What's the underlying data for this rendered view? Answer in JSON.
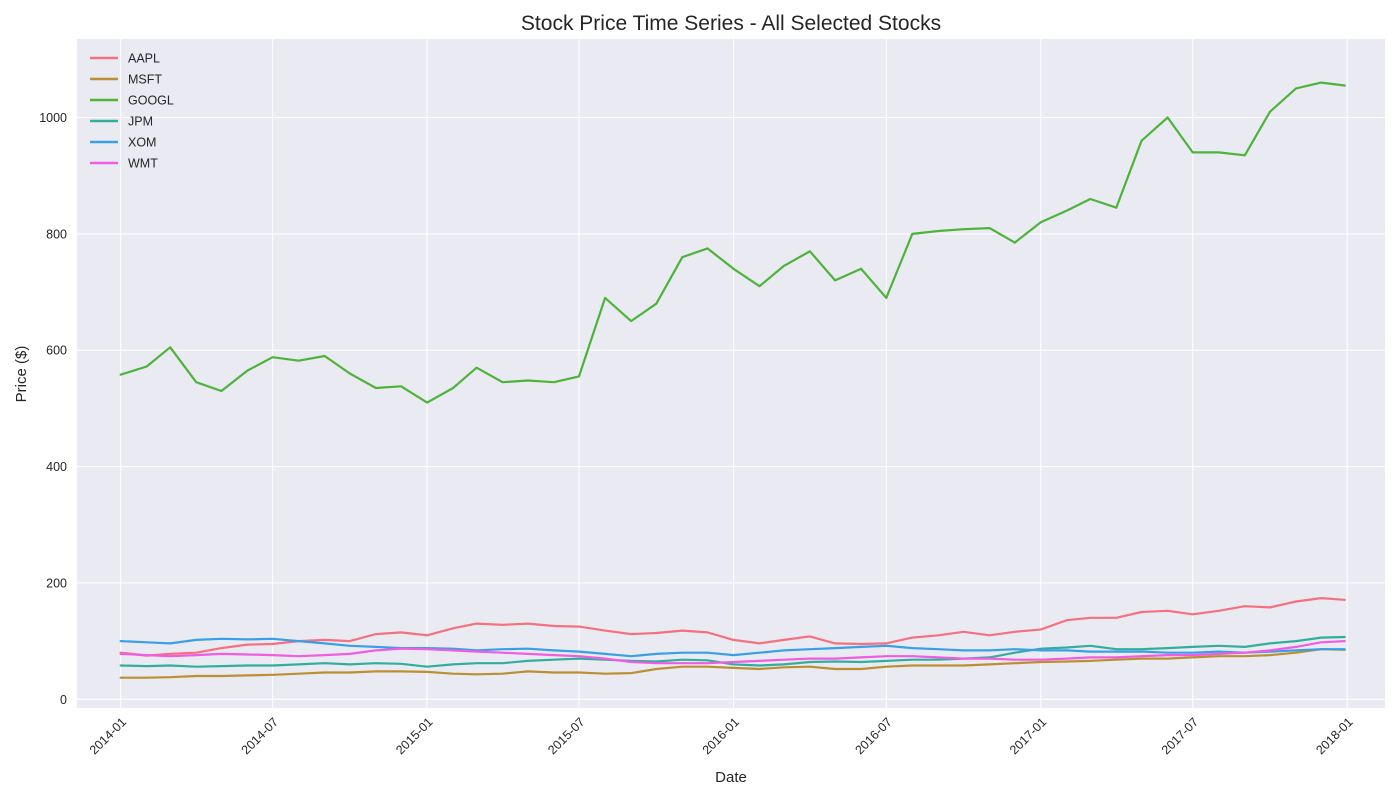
{
  "chart_data": {
    "type": "line",
    "title": "Stock Price Time Series - All Selected Stocks",
    "xlabel": "Date",
    "ylabel": "Price ($)",
    "xlim": [
      "2013-11-10",
      "2018-02-15"
    ],
    "ylim": [
      -15,
      1135
    ],
    "x_ticks": [
      "2014-01",
      "2014-07",
      "2015-01",
      "2015-07",
      "2016-01",
      "2016-07",
      "2017-01",
      "2017-07",
      "2018-01"
    ],
    "y_ticks": [
      0,
      200,
      400,
      600,
      800,
      1000
    ],
    "grid": true,
    "legend_position": "top-left",
    "x": [
      "2014-01-01",
      "2014-02-01",
      "2014-03-01",
      "2014-04-01",
      "2014-05-01",
      "2014-06-01",
      "2014-07-01",
      "2014-08-01",
      "2014-09-01",
      "2014-10-01",
      "2014-11-01",
      "2014-12-01",
      "2015-01-01",
      "2015-02-01",
      "2015-03-01",
      "2015-04-01",
      "2015-05-01",
      "2015-06-01",
      "2015-07-01",
      "2015-08-01",
      "2015-09-01",
      "2015-10-01",
      "2015-11-01",
      "2015-12-01",
      "2016-01-01",
      "2016-02-01",
      "2016-03-01",
      "2016-04-01",
      "2016-05-01",
      "2016-06-01",
      "2016-07-01",
      "2016-08-01",
      "2016-09-01",
      "2016-10-01",
      "2016-11-01",
      "2016-12-01",
      "2017-01-01",
      "2017-02-01",
      "2017-03-01",
      "2017-04-01",
      "2017-05-01",
      "2017-06-01",
      "2017-07-01",
      "2017-08-01",
      "2017-09-01",
      "2017-10-01",
      "2017-11-01",
      "2017-12-01",
      "2017-12-29"
    ],
    "series": [
      {
        "name": "AAPL",
        "color": "#f4717f",
        "values": [
          80,
          75,
          78,
          80,
          88,
          94,
          95,
          100,
          102,
          100,
          112,
          115,
          110,
          122,
          130,
          128,
          130,
          126,
          125,
          118,
          112,
          114,
          118,
          115,
          102,
          96,
          102,
          108,
          96,
          95,
          96,
          106,
          110,
          116,
          110,
          116,
          120,
          136,
          140,
          140,
          150,
          152,
          146,
          152,
          160,
          158,
          168,
          174,
          171
        ]
      },
      {
        "name": "MSFT",
        "color": "#bb9033",
        "values": [
          37,
          37,
          38,
          40,
          40,
          41,
          42,
          44,
          46,
          46,
          48,
          48,
          47,
          44,
          43,
          44,
          48,
          46,
          46,
          44,
          45,
          52,
          56,
          56,
          54,
          52,
          55,
          56,
          52,
          52,
          56,
          58,
          58,
          58,
          60,
          62,
          64,
          65,
          66,
          68,
          70,
          70,
          72,
          74,
          74,
          76,
          80,
          86,
          85
        ]
      },
      {
        "name": "GOOGL",
        "color": "#4eb33a",
        "values": [
          558,
          572,
          605,
          545,
          530,
          565,
          588,
          582,
          590,
          560,
          535,
          538,
          510,
          535,
          570,
          545,
          548,
          545,
          555,
          690,
          650,
          680,
          760,
          775,
          740,
          710,
          745,
          770,
          720,
          740,
          690,
          800,
          805,
          808,
          810,
          785,
          820,
          840,
          860,
          845,
          960,
          1000,
          940,
          940,
          935,
          1010,
          1050,
          1060,
          1055
        ]
      },
      {
        "name": "JPM",
        "color": "#32ae9c",
        "values": [
          58,
          57,
          58,
          56,
          57,
          58,
          58,
          60,
          62,
          60,
          62,
          61,
          56,
          60,
          62,
          62,
          66,
          68,
          70,
          68,
          66,
          65,
          68,
          67,
          60,
          58,
          60,
          64,
          65,
          64,
          66,
          68,
          68,
          70,
          72,
          80,
          87,
          89,
          92,
          86,
          86,
          88,
          90,
          92,
          90,
          96,
          100,
          106,
          107
        ]
      },
      {
        "name": "XOM",
        "color": "#3aa0e5",
        "values": [
          100,
          98,
          96,
          102,
          104,
          103,
          104,
          100,
          96,
          92,
          90,
          88,
          88,
          87,
          84,
          86,
          87,
          84,
          82,
          78,
          74,
          78,
          80,
          80,
          76,
          80,
          84,
          86,
          88,
          90,
          92,
          88,
          86,
          84,
          84,
          86,
          84,
          84,
          82,
          82,
          82,
          80,
          80,
          82,
          80,
          82,
          84,
          86,
          86
        ]
      },
      {
        "name": "WMT",
        "color": "#f05ce2",
        "values": [
          78,
          76,
          74,
          76,
          78,
          77,
          76,
          74,
          76,
          78,
          84,
          87,
          86,
          84,
          82,
          80,
          78,
          76,
          74,
          70,
          64,
          62,
          62,
          62,
          64,
          66,
          68,
          70,
          70,
          72,
          74,
          74,
          72,
          70,
          70,
          68,
          68,
          70,
          72,
          72,
          74,
          76,
          76,
          78,
          80,
          84,
          90,
          98,
          100
        ]
      }
    ]
  }
}
